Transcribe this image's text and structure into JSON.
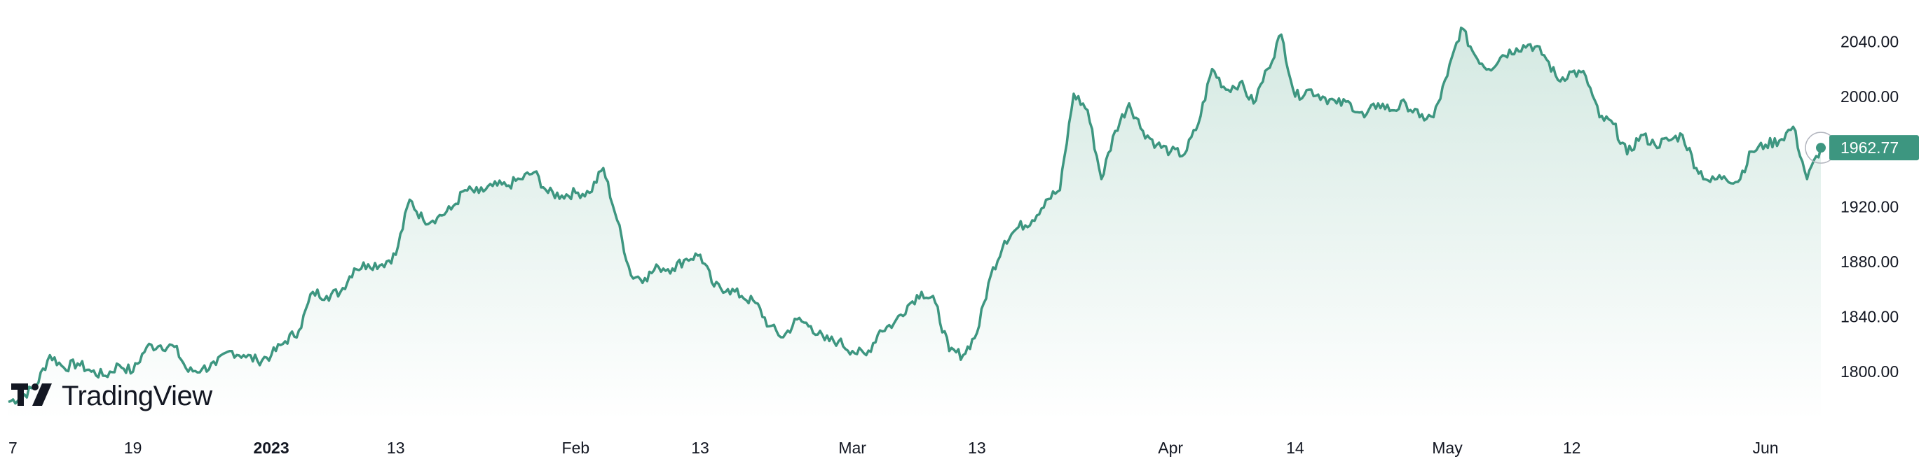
{
  "brand": {
    "name": "TradingView"
  },
  "colors": {
    "line": "#3d9680",
    "fill_top": "#d4e9e2",
    "fill_bottom": "#ffffff",
    "label_bg": "#3d9680"
  },
  "chart_data": {
    "type": "area",
    "last_price": 1962.77,
    "last_price_label": "1962.77",
    "ylim": [
      1765,
      2060
    ],
    "y_ticks": [
      "1800.00",
      "1840.00",
      "1880.00",
      "1920.00",
      "2000.00",
      "2040.00"
    ],
    "y_tick_values": [
      1800,
      1840,
      1880,
      1920,
      2000,
      2040
    ],
    "x_ticks": [
      {
        "label": "7",
        "t": 0,
        "bold": false
      },
      {
        "label": "19",
        "t": 9,
        "bold": false
      },
      {
        "label": "2023",
        "t": 19,
        "bold": true
      },
      {
        "label": "13",
        "t": 28,
        "bold": false
      },
      {
        "label": "Feb",
        "t": 41,
        "bold": false
      },
      {
        "label": "13",
        "t": 50,
        "bold": false
      },
      {
        "label": "Mar",
        "t": 61,
        "bold": false
      },
      {
        "label": "13",
        "t": 70,
        "bold": false
      },
      {
        "label": "Apr",
        "t": 84,
        "bold": false
      },
      {
        "label": "14",
        "t": 93,
        "bold": false
      },
      {
        "label": "May",
        "t": 104,
        "bold": false
      },
      {
        "label": "12",
        "t": 113,
        "bold": false
      },
      {
        "label": "Jun",
        "t": 127,
        "bold": false
      }
    ],
    "x_range": [
      0,
      131
    ],
    "points": [
      [
        0,
        1778
      ],
      [
        1,
        1782
      ],
      [
        2,
        1790
      ],
      [
        3,
        1812
      ],
      [
        4,
        1803
      ],
      [
        5,
        1806
      ],
      [
        6,
        1800
      ],
      [
        7,
        1797
      ],
      [
        8,
        1805
      ],
      [
        9,
        1800
      ],
      [
        10,
        1818
      ],
      [
        11,
        1819
      ],
      [
        12,
        1818
      ],
      [
        13,
        1800
      ],
      [
        14,
        1802
      ],
      [
        15,
        1805
      ],
      [
        16,
        1815
      ],
      [
        17,
        1812
      ],
      [
        18,
        1808
      ],
      [
        19,
        1812
      ],
      [
        20,
        1822
      ],
      [
        21,
        1830
      ],
      [
        22,
        1858
      ],
      [
        23,
        1855
      ],
      [
        24,
        1858
      ],
      [
        25,
        1875
      ],
      [
        26,
        1878
      ],
      [
        27,
        1878
      ],
      [
        28,
        1885
      ],
      [
        29,
        1925
      ],
      [
        30,
        1910
      ],
      [
        31,
        1912
      ],
      [
        32,
        1918
      ],
      [
        33,
        1932
      ],
      [
        34,
        1930
      ],
      [
        35,
        1935
      ],
      [
        36,
        1935
      ],
      [
        37,
        1940
      ],
      [
        38,
        1945
      ],
      [
        39,
        1930
      ],
      [
        40,
        1928
      ],
      [
        41,
        1930
      ],
      [
        42,
        1930
      ],
      [
        43,
        1948
      ],
      [
        44,
        1910
      ],
      [
        45,
        1870
      ],
      [
        46,
        1868
      ],
      [
        47,
        1876
      ],
      [
        48,
        1875
      ],
      [
        49,
        1882
      ],
      [
        50,
        1885
      ],
      [
        51,
        1862
      ],
      [
        52,
        1860
      ],
      [
        53,
        1855
      ],
      [
        54,
        1850
      ],
      [
        55,
        1833
      ],
      [
        56,
        1825
      ],
      [
        57,
        1838
      ],
      [
        58,
        1833
      ],
      [
        59,
        1823
      ],
      [
        60,
        1822
      ],
      [
        61,
        1815
      ],
      [
        62,
        1812
      ],
      [
        63,
        1830
      ],
      [
        64,
        1835
      ],
      [
        65,
        1848
      ],
      [
        66,
        1858
      ],
      [
        67,
        1850
      ],
      [
        68,
        1815
      ],
      [
        69,
        1812
      ],
      [
        70,
        1828
      ],
      [
        71,
        1870
      ],
      [
        72,
        1895
      ],
      [
        73,
        1905
      ],
      [
        74,
        1910
      ],
      [
        75,
        1925
      ],
      [
        76,
        1932
      ],
      [
        77,
        2002
      ],
      [
        78,
        1990
      ],
      [
        79,
        1940
      ],
      [
        80,
        1975
      ],
      [
        81,
        1995
      ],
      [
        82,
        1975
      ],
      [
        83,
        1965
      ],
      [
        84,
        1960
      ],
      [
        85,
        1958
      ],
      [
        86,
        1980
      ],
      [
        87,
        2020
      ],
      [
        88,
        2005
      ],
      [
        89,
        2010
      ],
      [
        90,
        1995
      ],
      [
        91,
        2020
      ],
      [
        92,
        2045
      ],
      [
        93,
        2000
      ],
      [
        94,
        2005
      ],
      [
        95,
        2000
      ],
      [
        96,
        1995
      ],
      [
        97,
        1995
      ],
      [
        98,
        1985
      ],
      [
        99,
        1995
      ],
      [
        100,
        1990
      ],
      [
        101,
        1995
      ],
      [
        102,
        1985
      ],
      [
        103,
        1985
      ],
      [
        104,
        2015
      ],
      [
        105,
        2050
      ],
      [
        106,
        2030
      ],
      [
        107,
        2020
      ],
      [
        108,
        2030
      ],
      [
        109,
        2035
      ],
      [
        110,
        2038
      ],
      [
        111,
        2030
      ],
      [
        112,
        2012
      ],
      [
        113,
        2018
      ],
      [
        114,
        2015
      ],
      [
        115,
        1985
      ],
      [
        116,
        1980
      ],
      [
        117,
        1958
      ],
      [
        118,
        1972
      ],
      [
        119,
        1965
      ],
      [
        120,
        1968
      ],
      [
        121,
        1972
      ],
      [
        122,
        1948
      ],
      [
        123,
        1938
      ],
      [
        124,
        1942
      ],
      [
        125,
        1938
      ],
      [
        126,
        1960
      ],
      [
        127,
        1965
      ],
      [
        128,
        1968
      ],
      [
        129,
        1978
      ],
      [
        130,
        1940
      ],
      [
        131,
        1962.77
      ]
    ]
  }
}
